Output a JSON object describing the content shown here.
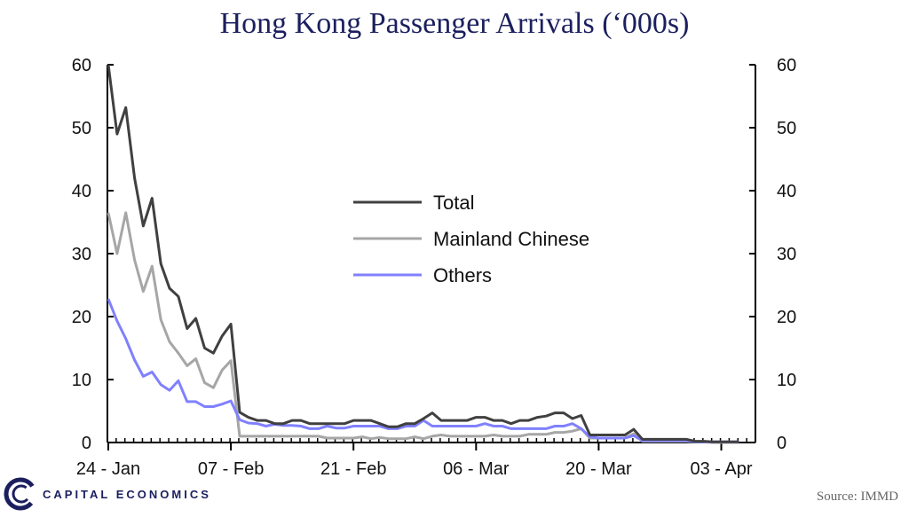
{
  "title": "Hong Kong Passenger Arrivals (‘000s)",
  "source": "Source: IMMD",
  "brand": "CAPITAL ECONOMICS",
  "colors": {
    "title": "#1b1f5e",
    "total": "#404040",
    "mainland": "#a6a6a6",
    "others": "#8080ff"
  },
  "chart_data": {
    "type": "line",
    "x_start_label": "24 - Jan",
    "x_tick_labels": [
      "24 - Jan",
      "07 - Feb",
      "21 - Feb",
      "06 - Mar",
      "20 - Mar",
      "03 - Apr"
    ],
    "x_tick_index": [
      0,
      14,
      28,
      42,
      56,
      70
    ],
    "ylim": [
      0,
      60
    ],
    "y_ticks": [
      0,
      10,
      20,
      30,
      40,
      50,
      60
    ],
    "grid": false,
    "legend_position": "center",
    "series": [
      {
        "name": "Total",
        "values": [
          60,
          49,
          53.2,
          42,
          34.4,
          38.8,
          28.4,
          24.5,
          23.2,
          18.1,
          19.7,
          15,
          14.2,
          16.9,
          18.8,
          4.8,
          4,
          3.5,
          3.5,
          3,
          3,
          3.5,
          3.5,
          3,
          3,
          3,
          3,
          3,
          3.5,
          3.5,
          3.5,
          3,
          2.5,
          2.5,
          3,
          3,
          3.8,
          4.7,
          3.5,
          3.5,
          3.5,
          3.5,
          4,
          4,
          3.5,
          3.5,
          3,
          3.5,
          3.5,
          4,
          4.2,
          4.7,
          4.7,
          3.8,
          4.3,
          1.2,
          1.2,
          1.2,
          1.2,
          1.2,
          2.1,
          0.5,
          0.5,
          0.5,
          0.5,
          0.5,
          0.5,
          0.2,
          0.2,
          0.1,
          0.1,
          0.1,
          0.1
        ]
      },
      {
        "name": "Mainland Chinese",
        "values": [
          36.5,
          30,
          36.5,
          29,
          24,
          28,
          19.5,
          16,
          14.2,
          12.2,
          13.3,
          9.5,
          8.7,
          11.5,
          13,
          1,
          1,
          1,
          1,
          1,
          1,
          1,
          1,
          1,
          1,
          0.7,
          0.7,
          0.7,
          0.7,
          0.9,
          0.6,
          0.8,
          0.6,
          0.6,
          0.6,
          0.9,
          0.6,
          1,
          1.2,
          1,
          1,
          1,
          1,
          1,
          1.2,
          1,
          1,
          1,
          1.3,
          1.3,
          1.3,
          1.6,
          1.6,
          1.8,
          2.2,
          0.7,
          0.7,
          0.7,
          0.7,
          0.7,
          1.4,
          0.2,
          0.2,
          0.2,
          0.2,
          0.2,
          0.2,
          0.1,
          0.1,
          0,
          0,
          0,
          0
        ]
      },
      {
        "name": "Others",
        "values": [
          22.8,
          19.3,
          16.5,
          13.1,
          10.5,
          11.2,
          9.2,
          8.3,
          9.8,
          6.5,
          6.5,
          5.7,
          5.7,
          6.1,
          6.6,
          3.6,
          3.1,
          3,
          2.6,
          2.9,
          2.7,
          2.7,
          2.6,
          2.2,
          2.2,
          2.6,
          2.3,
          2.3,
          2.6,
          2.6,
          2.6,
          2.6,
          2.2,
          2.2,
          2.6,
          2.6,
          3.5,
          2.6,
          2.6,
          2.6,
          2.6,
          2.6,
          2.6,
          3,
          2.6,
          2.6,
          2.2,
          2.2,
          2.2,
          2.2,
          2.2,
          2.6,
          2.6,
          3,
          2.2,
          0.9,
          0.7,
          0.7,
          0.7,
          0.7,
          1.1,
          0.3,
          0.3,
          0.3,
          0.3,
          0.3,
          0.3,
          0.1,
          0.1,
          0.1,
          0.1,
          0.1,
          0.1
        ]
      }
    ]
  }
}
